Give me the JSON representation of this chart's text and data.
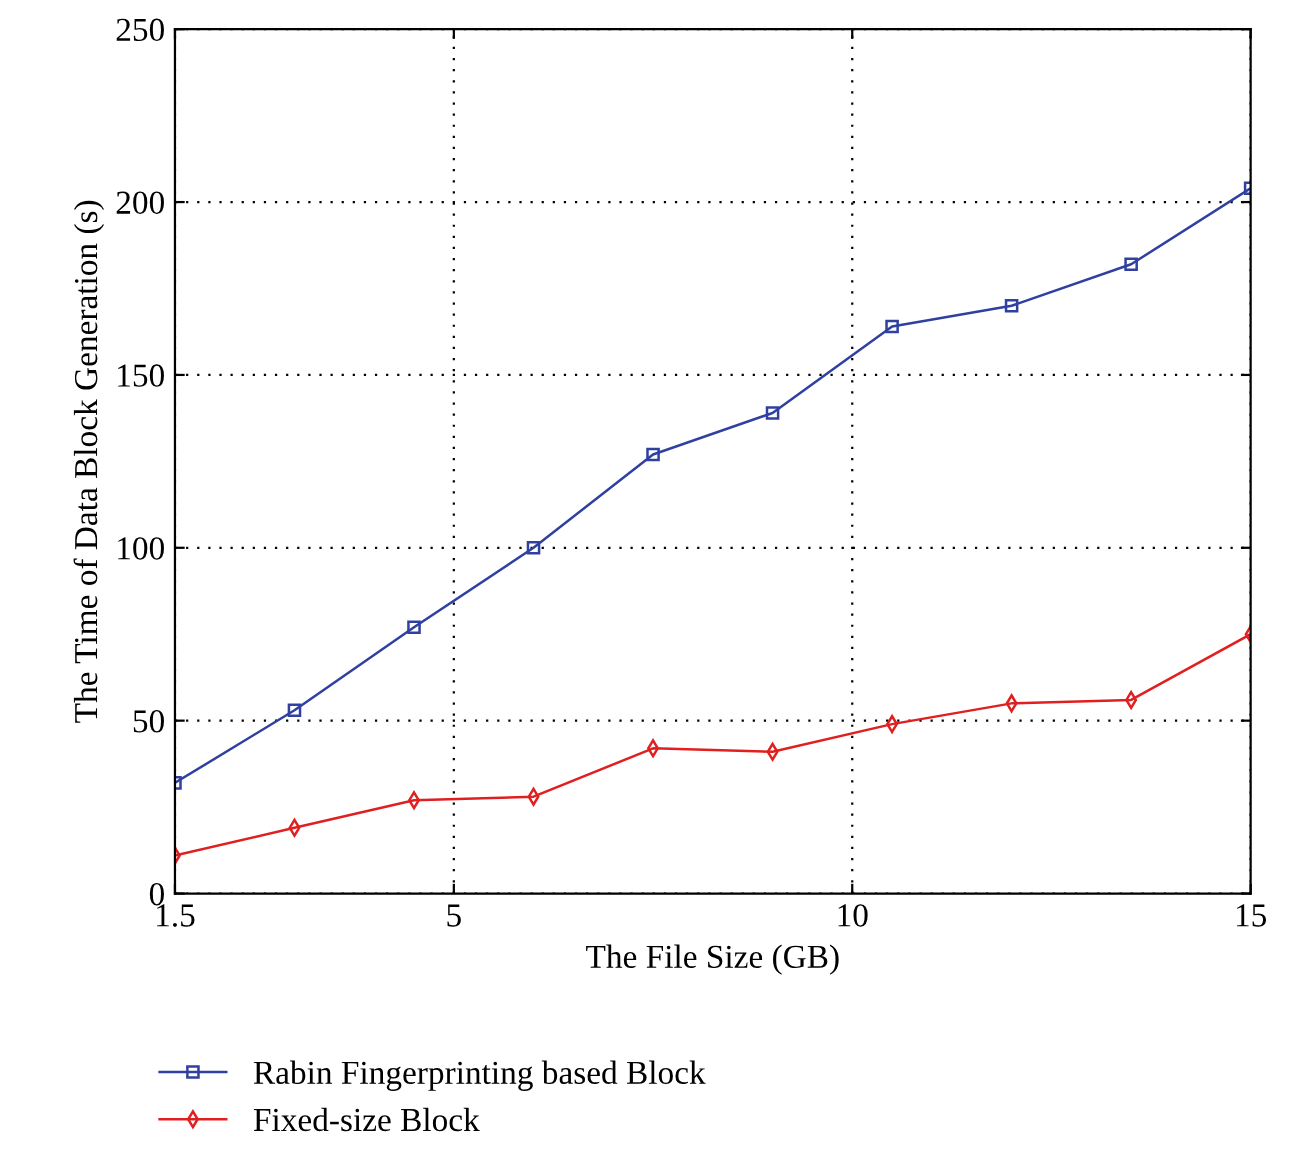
{
  "chart_data": {
    "type": "line",
    "xlabel": "The File Size (GB)",
    "ylabel": "The Time of Data Block Generation (s)",
    "x": [
      1.5,
      3,
      4.5,
      6,
      7.5,
      9,
      10.5,
      12,
      13.5,
      15
    ],
    "series": [
      {
        "name": "Rabin Fingerprinting based Block",
        "color": "#3040a0",
        "marker": "square",
        "values": [
          32,
          53,
          77,
          100,
          127,
          139,
          164,
          170,
          182,
          204
        ]
      },
      {
        "name": "Fixed-size Block",
        "color": "#e02020",
        "marker": "diamond",
        "values": [
          11,
          19,
          27,
          28,
          42,
          41,
          49,
          55,
          56,
          75
        ]
      }
    ],
    "xlim": [
      1.5,
      15
    ],
    "xticks": [
      1.5,
      5,
      10,
      15
    ],
    "ylim": [
      0,
      250
    ],
    "yticks": [
      0,
      50,
      100,
      150,
      200,
      250
    ],
    "grid": true,
    "legend": "bottom",
    "line_style": "solid"
  }
}
